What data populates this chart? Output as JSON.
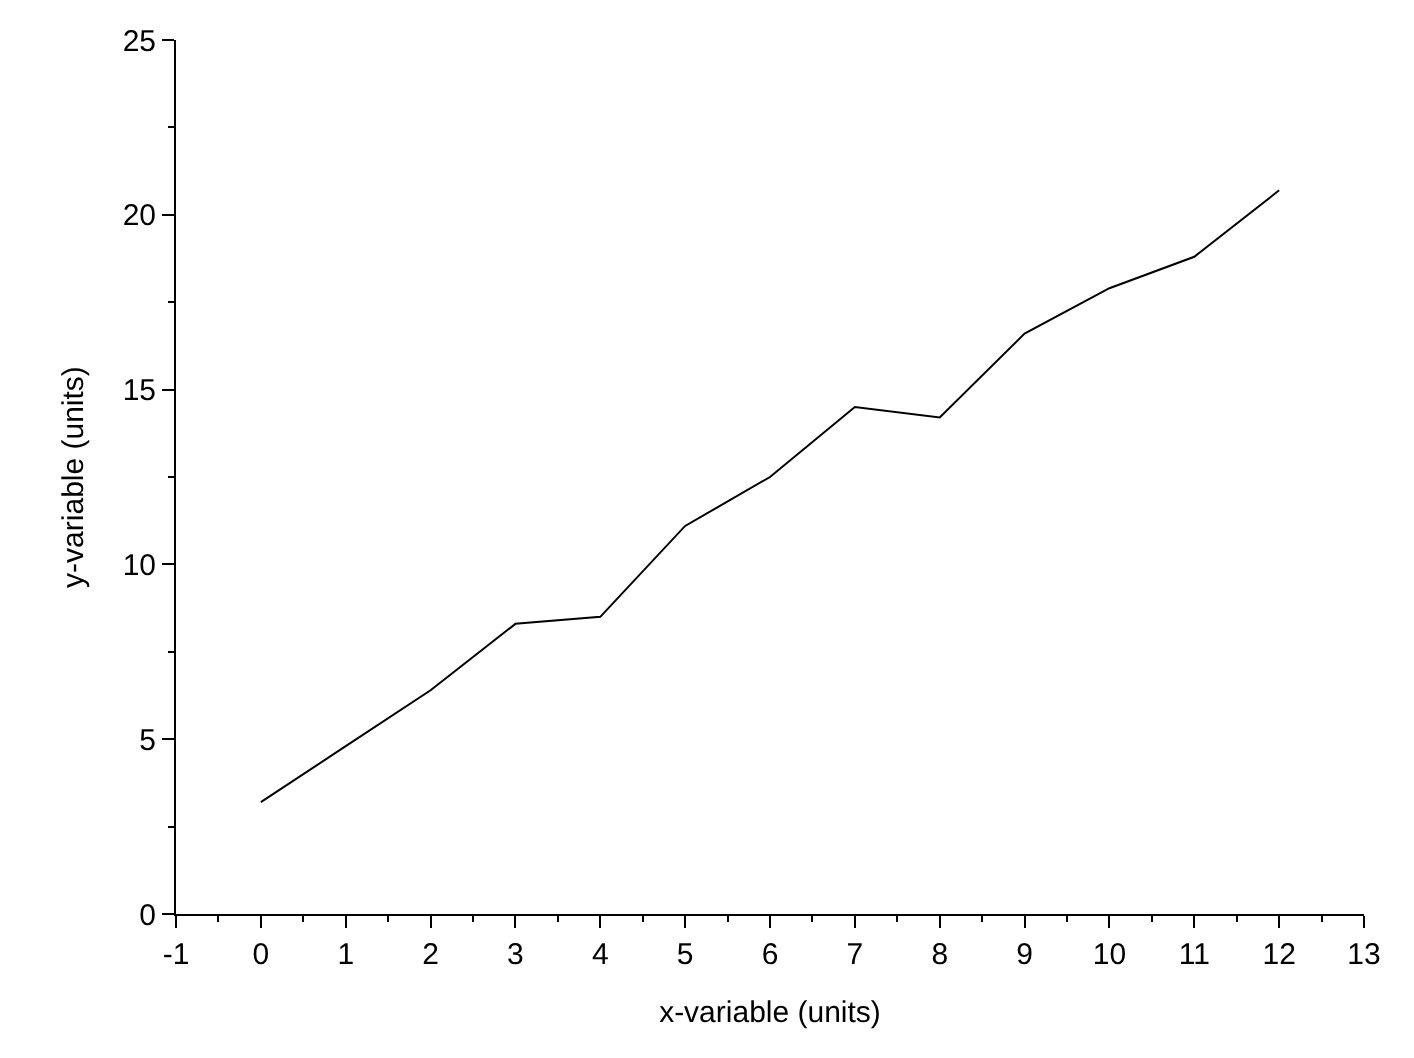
{
  "chart_data": {
    "type": "line",
    "xlabel": "x-variable (units)",
    "ylabel": "y-variable (units)",
    "x": [
      0,
      1,
      2,
      3,
      4,
      5,
      6,
      7,
      8,
      9,
      10,
      11,
      12
    ],
    "series": [
      {
        "color": "#000000",
        "values": [
          3.2,
          4.8,
          6.4,
          8.3,
          8.5,
          11.1,
          12.5,
          14.5,
          14.2,
          16.6,
          17.9,
          18.8,
          20.7
        ]
      }
    ],
    "xlim": [
      -1,
      13
    ],
    "xticks": [
      -1,
      0,
      1,
      2,
      3,
      4,
      5,
      6,
      7,
      8,
      9,
      10,
      11,
      12,
      13
    ],
    "ylim": [
      0,
      25
    ],
    "yticks": [
      0,
      5,
      10,
      15,
      20,
      25
    ],
    "marker": "none",
    "line_style": "solid"
  }
}
